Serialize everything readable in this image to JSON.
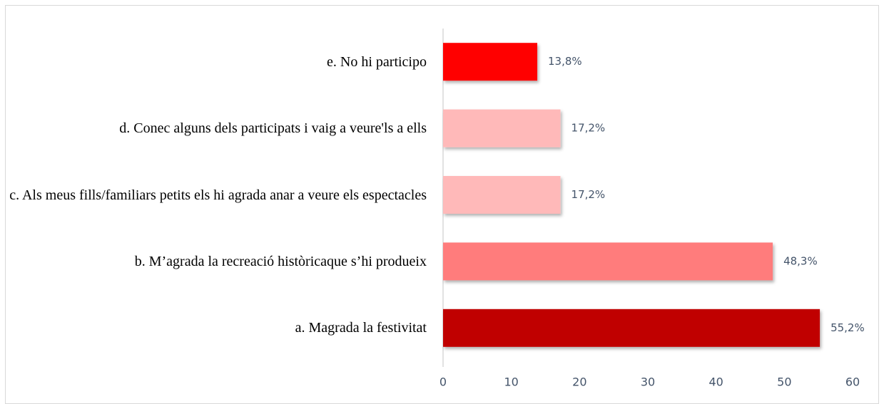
{
  "chart_data": {
    "type": "barh",
    "categories": [
      "e. No hi participo",
      "d. Conec alguns dels participats i vaig a veure'ls a ells",
      "c. Als meus fills/familiars petits els hi agrada anar a veure els espectacles",
      "b. M’agrada la recreació històricaque s’hi produeix",
      "a. Magrada la festivitat"
    ],
    "values": [
      13.8,
      17.2,
      17.2,
      48.3,
      55.2
    ],
    "value_labels": [
      "13,8%",
      "17,2%",
      "17,2%",
      "48,3%",
      "55,2%"
    ],
    "colors": [
      "#ff0000",
      "#ffb9b9",
      "#ffb9b9",
      "#ff7c7c",
      "#c00000"
    ],
    "xlim": [
      0,
      60
    ],
    "xticks": [
      0,
      10,
      20,
      30,
      40,
      50,
      60
    ]
  }
}
